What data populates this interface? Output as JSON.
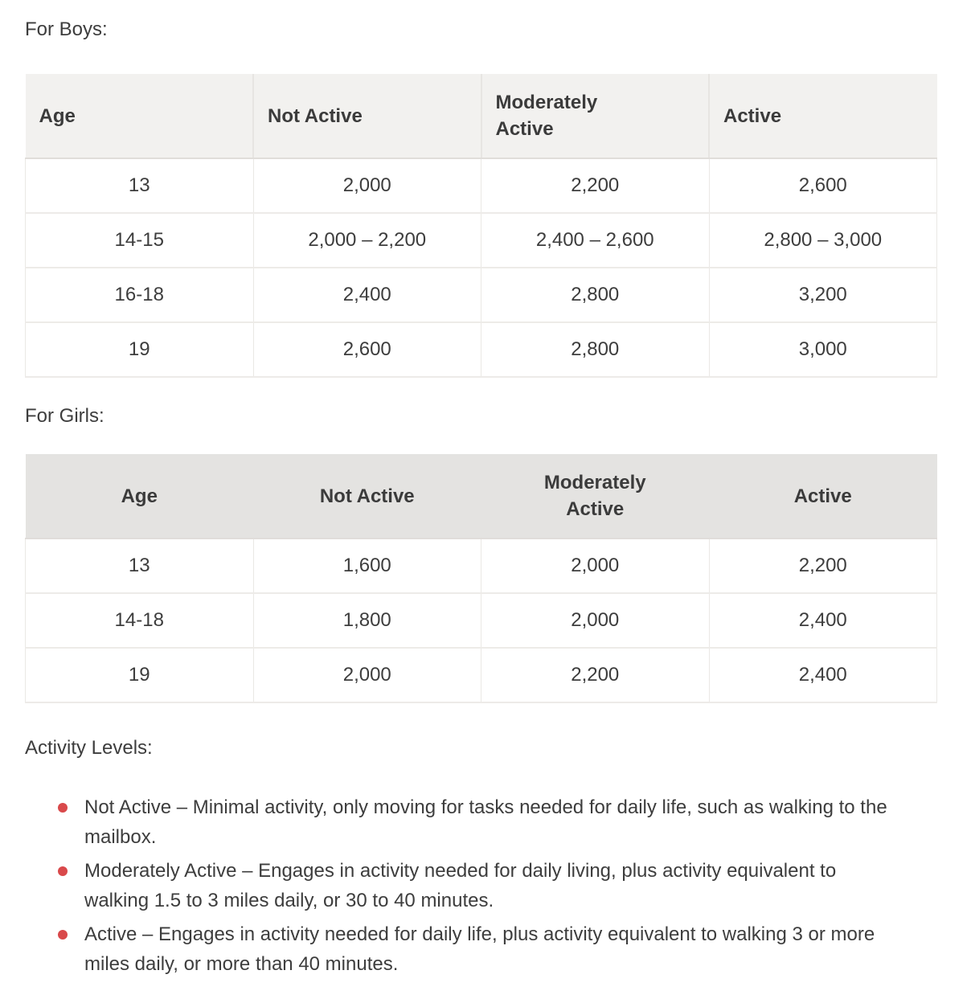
{
  "boys": {
    "heading": "For Boys:",
    "table": {
      "headers": [
        "Age",
        "Not Active",
        "Moderately Active",
        "Active"
      ],
      "rows": [
        [
          "13",
          "2,000",
          "2,200",
          "2,600"
        ],
        [
          "14-15",
          "2,000 – 2,200",
          "2,400 – 2,600",
          "2,800 – 3,000"
        ],
        [
          "16-18",
          "2,400",
          "2,800",
          "3,200"
        ],
        [
          "19",
          "2,600",
          "2,800",
          "3,000"
        ]
      ]
    }
  },
  "girls": {
    "heading": "For Girls:",
    "table": {
      "headers": [
        "Age",
        "Not Active",
        "Moderately Active",
        "Active"
      ],
      "rows": [
        [
          "13",
          "1,600",
          "2,000",
          "2,200"
        ],
        [
          "14-18",
          "1,800",
          "2,000",
          "2,400"
        ],
        [
          "19",
          "2,000",
          "2,200",
          "2,400"
        ]
      ]
    }
  },
  "activity_levels": {
    "heading": "Activity Levels:",
    "items": [
      "Not Active – Minimal activity, only moving for tasks needed for daily life, such as walking to the mailbox.",
      "Moderately Active – Engages in activity needed for daily living, plus activity equivalent to walking 1.5 to 3 miles daily, or 30 to 40 minutes.",
      "Active – Engages in activity needed for daily life, plus activity equivalent to walking 3 or more miles daily, or more than 40 minutes."
    ]
  },
  "colors": {
    "bullet_red": "#d9494b",
    "boys_header_bg": "#f2f1ef",
    "girls_header_bg": "#e4e3e1",
    "body_text": "#3d3d3d"
  }
}
